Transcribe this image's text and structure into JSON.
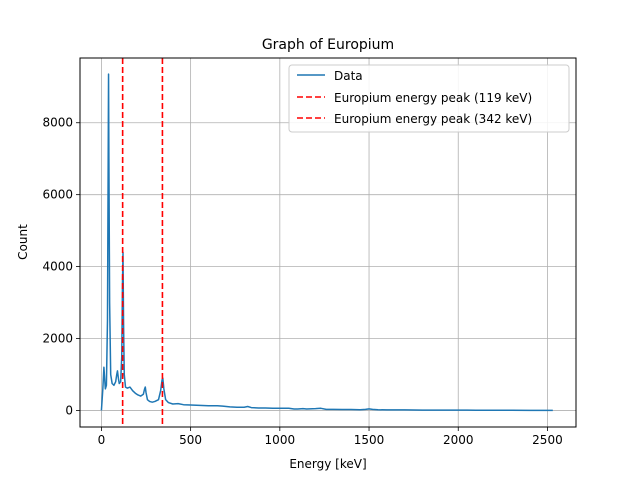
{
  "chart_data": {
    "type": "line",
    "title": "Graph of Europium",
    "xlabel": "Energy [keV]",
    "ylabel": "Count",
    "xlim": [
      -120,
      2660
    ],
    "ylim": [
      -460,
      9800
    ],
    "xticks": [
      0,
      500,
      1000,
      1500,
      2000,
      2500
    ],
    "yticks": [
      0,
      2000,
      4000,
      6000,
      8000
    ],
    "grid": true,
    "legend_position": "top-right",
    "series": [
      {
        "name": "Data",
        "color": "#1f77b4",
        "points": [
          [
            0,
            0
          ],
          [
            8,
            600
          ],
          [
            14,
            1200
          ],
          [
            18,
            900
          ],
          [
            22,
            600
          ],
          [
            28,
            700
          ],
          [
            34,
            2500
          ],
          [
            38,
            7000
          ],
          [
            40,
            9350
          ],
          [
            42,
            7000
          ],
          [
            46,
            3000
          ],
          [
            52,
            1000
          ],
          [
            60,
            750
          ],
          [
            70,
            700
          ],
          [
            80,
            800
          ],
          [
            86,
            1000
          ],
          [
            90,
            1100
          ],
          [
            95,
            900
          ],
          [
            100,
            750
          ],
          [
            108,
            800
          ],
          [
            114,
            1500
          ],
          [
            118,
            3500
          ],
          [
            121,
            4400
          ],
          [
            124,
            2500
          ],
          [
            128,
            1000
          ],
          [
            135,
            650
          ],
          [
            145,
            620
          ],
          [
            160,
            650
          ],
          [
            175,
            550
          ],
          [
            190,
            480
          ],
          [
            205,
            430
          ],
          [
            220,
            400
          ],
          [
            235,
            450
          ],
          [
            242,
            600
          ],
          [
            246,
            650
          ],
          [
            250,
            500
          ],
          [
            258,
            300
          ],
          [
            270,
            250
          ],
          [
            285,
            230
          ],
          [
            300,
            250
          ],
          [
            320,
            300
          ],
          [
            332,
            550
          ],
          [
            340,
            850
          ],
          [
            344,
            900
          ],
          [
            350,
            600
          ],
          [
            360,
            300
          ],
          [
            375,
            220
          ],
          [
            400,
            180
          ],
          [
            430,
            190
          ],
          [
            460,
            160
          ],
          [
            500,
            150
          ],
          [
            550,
            140
          ],
          [
            600,
            130
          ],
          [
            650,
            130
          ],
          [
            680,
            120
          ],
          [
            720,
            100
          ],
          [
            760,
            90
          ],
          [
            800,
            90
          ],
          [
            820,
            110
          ],
          [
            840,
            80
          ],
          [
            880,
            70
          ],
          [
            920,
            70
          ],
          [
            960,
            60
          ],
          [
            1000,
            60
          ],
          [
            1050,
            60
          ],
          [
            1080,
            40
          ],
          [
            1100,
            40
          ],
          [
            1130,
            50
          ],
          [
            1150,
            40
          ],
          [
            1200,
            50
          ],
          [
            1230,
            60
          ],
          [
            1260,
            30
          ],
          [
            1300,
            30
          ],
          [
            1350,
            25
          ],
          [
            1400,
            25
          ],
          [
            1450,
            20
          ],
          [
            1480,
            30
          ],
          [
            1500,
            45
          ],
          [
            1520,
            30
          ],
          [
            1550,
            20
          ],
          [
            1600,
            15
          ],
          [
            1700,
            15
          ],
          [
            1800,
            10
          ],
          [
            1900,
            10
          ],
          [
            2000,
            8
          ],
          [
            2050,
            8
          ],
          [
            2100,
            5
          ],
          [
            2200,
            5
          ],
          [
            2300,
            5
          ],
          [
            2400,
            3
          ],
          [
            2450,
            3
          ],
          [
            2530,
            3
          ]
        ]
      }
    ],
    "vlines": [
      {
        "x": 119,
        "name": "Europium energy peak (119 keV)",
        "color": "#ff0000"
      },
      {
        "x": 342,
        "name": "Europium energy peak (342 keV)",
        "color": "#ff0000"
      }
    ]
  }
}
